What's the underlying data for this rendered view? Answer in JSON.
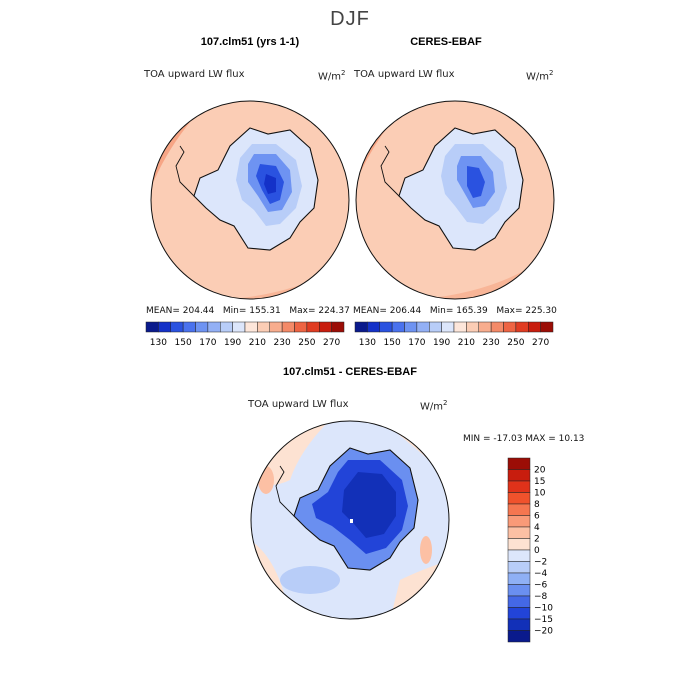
{
  "page": {
    "season_title": "DJF"
  },
  "panels": {
    "model": {
      "title": "107.clm51 (yrs 1-1)",
      "variable": "TOA upward LW flux",
      "units": "W/m",
      "units_exp": "2",
      "mean_label": "MEAN=",
      "mean": "204.44",
      "min_label": "Min=",
      "min": "155.31",
      "max_label": "Max=",
      "max": "224.37"
    },
    "obs": {
      "title": "CERES-EBAF",
      "variable": "TOA upward LW flux",
      "units": "W/m",
      "units_exp": "2",
      "mean_label": "MEAN=",
      "mean": "206.44",
      "min_label": "Min=",
      "min": "165.39",
      "max_label": "Max=",
      "max": "225.30"
    },
    "diff": {
      "title": "107.clm51 - CERES-EBAF",
      "variable": "TOA upward LW flux",
      "units": "W/m",
      "units_exp": "2",
      "minmax": "MIN = -17.03 MAX =  10.13"
    }
  },
  "colorbars": {
    "absolute": {
      "levels": [
        "130",
        "150",
        "170",
        "190",
        "210",
        "230",
        "250",
        "270"
      ],
      "colors": [
        "#0a1a8c",
        "#1431c8",
        "#2a52e0",
        "#4a72ee",
        "#6e93f2",
        "#93b0f5",
        "#b8cdf8",
        "#dce6fb",
        "#fde6da",
        "#fbcdb5",
        "#f8ad8e",
        "#f48a68",
        "#ee6443",
        "#e03c22",
        "#c81d0e",
        "#9b0d06"
      ]
    },
    "difference": {
      "levels": [
        "20",
        "15",
        "10",
        "8",
        "6",
        "4",
        "2",
        "0",
        "-2",
        "-4",
        "-6",
        "-8",
        "-10",
        "-15",
        "-20"
      ],
      "colors": [
        "#9b0d06",
        "#c81d0e",
        "#e0321a",
        "#f0522c",
        "#f57650",
        "#f99a78",
        "#fcc0a4",
        "#fde2d2",
        "#dce6fb",
        "#b8cdf8",
        "#8fb0f5",
        "#6a8ff0",
        "#4468e6",
        "#2244d8",
        "#1230b8",
        "#0a1a8c"
      ]
    }
  },
  "map_colors": {
    "ocean_warm": "#fbcdb5",
    "ocean_warmer": "#f8b597",
    "ocean_edge": "#f7a585",
    "ice_pale": "#dce6fb",
    "ice_light": "#b8cdf8",
    "ice_mid": "#6e93f2",
    "ice_deep": "#2a52e0",
    "ice_core": "#1431c8",
    "diff_neutral": "#fde2d2",
    "diff_pos": "#fcc0a4",
    "diff_neg_pale": "#dce6fb",
    "diff_neg_light": "#b8cdf8",
    "diff_neg_mid": "#6a8ff0",
    "diff_neg_strong": "#2244d8",
    "diff_neg_core": "#1230b8"
  }
}
